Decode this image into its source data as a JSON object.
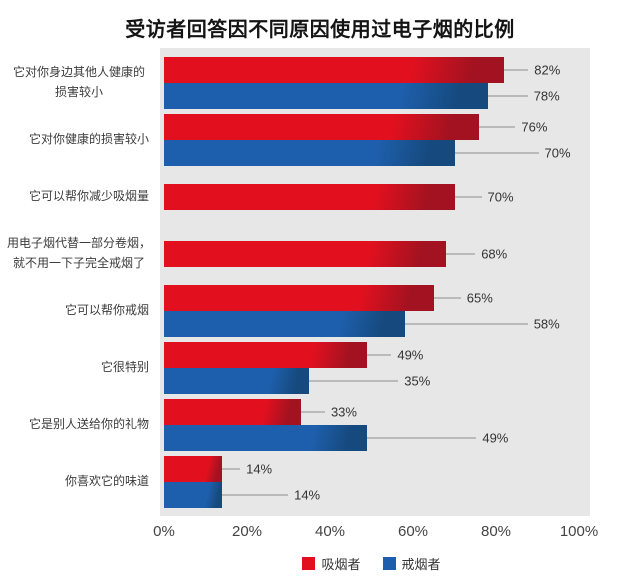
{
  "title": "受访者回答因不同原因使用过电子烟的比例",
  "colors": {
    "smoker_red": "#e2101f",
    "smoker_red_dark": "#a31220",
    "quitter_blue": "#1e5fad",
    "quitter_blue_dark": "#164a7e",
    "plot_background": "#e7e7e7",
    "leader_line": "#8c8c8c"
  },
  "chart_data": {
    "type": "bar",
    "orientation": "horizontal",
    "title": "受访者回答因不同原因使用过电子烟的比例",
    "categories": [
      "它对你身边其他人健康的损害较小",
      "它对你健康的损害较小",
      "它可以帮你减少吸烟量",
      "用电子烟代替一部分卷烟，就不用一下子完全戒烟了",
      "它可以帮你戒烟",
      "它很特别",
      "它是别人送给你的礼物",
      "你喜欢它的味道"
    ],
    "series": [
      {
        "name": "吸烟者",
        "color": "#e2101f",
        "color_dark": "#a31220",
        "values": [
          82,
          76,
          70,
          68,
          65,
          49,
          33,
          14
        ]
      },
      {
        "name": "戒烟者",
        "color": "#1e5fad",
        "color_dark": "#164a7e",
        "values": [
          78,
          70,
          null,
          null,
          58,
          35,
          49,
          14
        ]
      }
    ],
    "xlim": [
      0,
      100
    ],
    "x_ticks": [
      "0%",
      "20%",
      "40%",
      "60%",
      "80%",
      "100%"
    ],
    "grid": false,
    "legend_position": "bottom"
  },
  "rows": [
    {
      "label": "它对你身边其他人健康的\n损害较小",
      "bars": [
        {
          "series": 0,
          "value": 82,
          "display": "82%",
          "leader": 24
        },
        {
          "series": 1,
          "value": 78,
          "display": "78%",
          "leader": 40
        }
      ]
    },
    {
      "label": "它对你健康的损害较小",
      "bars": [
        {
          "series": 0,
          "value": 76,
          "display": "76%",
          "leader": 36
        },
        {
          "series": 1,
          "value": 70,
          "display": "70%",
          "leader": 84
        }
      ]
    },
    {
      "label": "它可以帮你减少吸烟量",
      "bars": [
        {
          "series": 0,
          "value": 70,
          "display": "70%",
          "leader": 27
        }
      ]
    },
    {
      "label": "用电子烟代替一部分卷烟，\n就不用一下子完全戒烟了",
      "bars": [
        {
          "series": 0,
          "value": 68,
          "display": "68%",
          "leader": 29
        }
      ]
    },
    {
      "label": "它可以帮你戒烟",
      "bars": [
        {
          "series": 0,
          "value": 65,
          "display": "65%",
          "leader": 27
        },
        {
          "series": 1,
          "value": 58,
          "display": "58%",
          "leader": 123
        }
      ]
    },
    {
      "label": "它很特别",
      "bars": [
        {
          "series": 0,
          "value": 49,
          "display": "49%",
          "leader": 24
        },
        {
          "series": 1,
          "value": 35,
          "display": "35%",
          "leader": 89
        }
      ]
    },
    {
      "label": "它是别人送给你的礼物",
      "bars": [
        {
          "series": 0,
          "value": 33,
          "display": "33%",
          "leader": 24
        },
        {
          "series": 1,
          "value": 49,
          "display": "49%",
          "leader": 109
        }
      ]
    },
    {
      "label": "你喜欢它的味道",
      "bars": [
        {
          "series": 0,
          "value": 14,
          "display": "14%",
          "leader": 18
        },
        {
          "series": 1,
          "value": 14,
          "display": "14%",
          "leader": 66
        }
      ]
    }
  ],
  "legend": {
    "items": [
      {
        "label": "吸烟者",
        "color": "#e2101f"
      },
      {
        "label": "戒烟者",
        "color": "#1e5fad"
      }
    ]
  }
}
